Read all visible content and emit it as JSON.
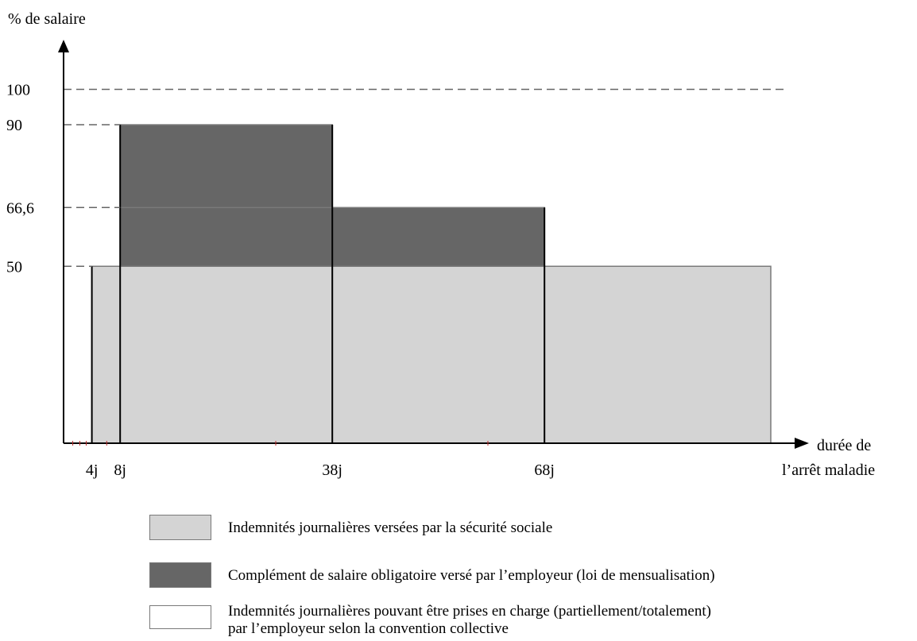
{
  "chart_data": {
    "type": "bar",
    "ylabel": "% de salaire",
    "xlabel_lines": [
      "durée de",
      "l’arrêt maladie"
    ],
    "y_ticks": [
      {
        "value": 100,
        "label": "100"
      },
      {
        "value": 90,
        "label": "90"
      },
      {
        "value": 66.6,
        "label": "66,6"
      },
      {
        "value": 50,
        "label": "50"
      }
    ],
    "x_ticks": [
      {
        "value": 4,
        "label": "4j"
      },
      {
        "value": 8,
        "label": "8j"
      },
      {
        "value": 38,
        "label": "38j"
      },
      {
        "value": 68,
        "label": "68j"
      }
    ],
    "ylim": [
      0,
      100
    ],
    "grid": "dashed at tick values",
    "series": [
      {
        "name": "Indemnités journalières versées par la sécurité sociale",
        "segments": [
          {
            "x_start": 4,
            "x_end": 8,
            "y_from": 0,
            "y_to": 50
          },
          {
            "x_start": 8,
            "x_end": 38,
            "y_from": 0,
            "y_to": 50
          },
          {
            "x_start": 38,
            "x_end": 68,
            "y_from": 0,
            "y_to": 50
          },
          {
            "x_start": 68,
            "x_end": 100,
            "y_from": 0,
            "y_to": 50
          }
        ]
      },
      {
        "name": "Complément de salaire obligatoire versé par l’employeur (loi de mensualisation)",
        "segments": [
          {
            "x_start": 8,
            "x_end": 38,
            "y_from": 50,
            "y_to": 66.6
          },
          {
            "x_start": 8,
            "x_end": 38,
            "y_from": 66.6,
            "y_to": 90
          },
          {
            "x_start": 38,
            "x_end": 68,
            "y_from": 50,
            "y_to": 66.6
          }
        ]
      }
    ],
    "colors": {
      "light": "#d4d4d4",
      "dark": "#666666",
      "border": "#7a7a7a"
    }
  },
  "legend": {
    "items": [
      {
        "swatch": "light",
        "lines": [
          "Indemnités journalières versées par la sécurité sociale"
        ]
      },
      {
        "swatch": "dark",
        "lines": [
          "Complément de salaire obligatoire versé par l’employeur (loi de mensualisation)"
        ]
      },
      {
        "swatch": "white",
        "lines": [
          "Indemnités journalières pouvant être prises en charge (partiellement/totalement)",
          "par l’employeur selon la convention collective"
        ]
      }
    ]
  }
}
